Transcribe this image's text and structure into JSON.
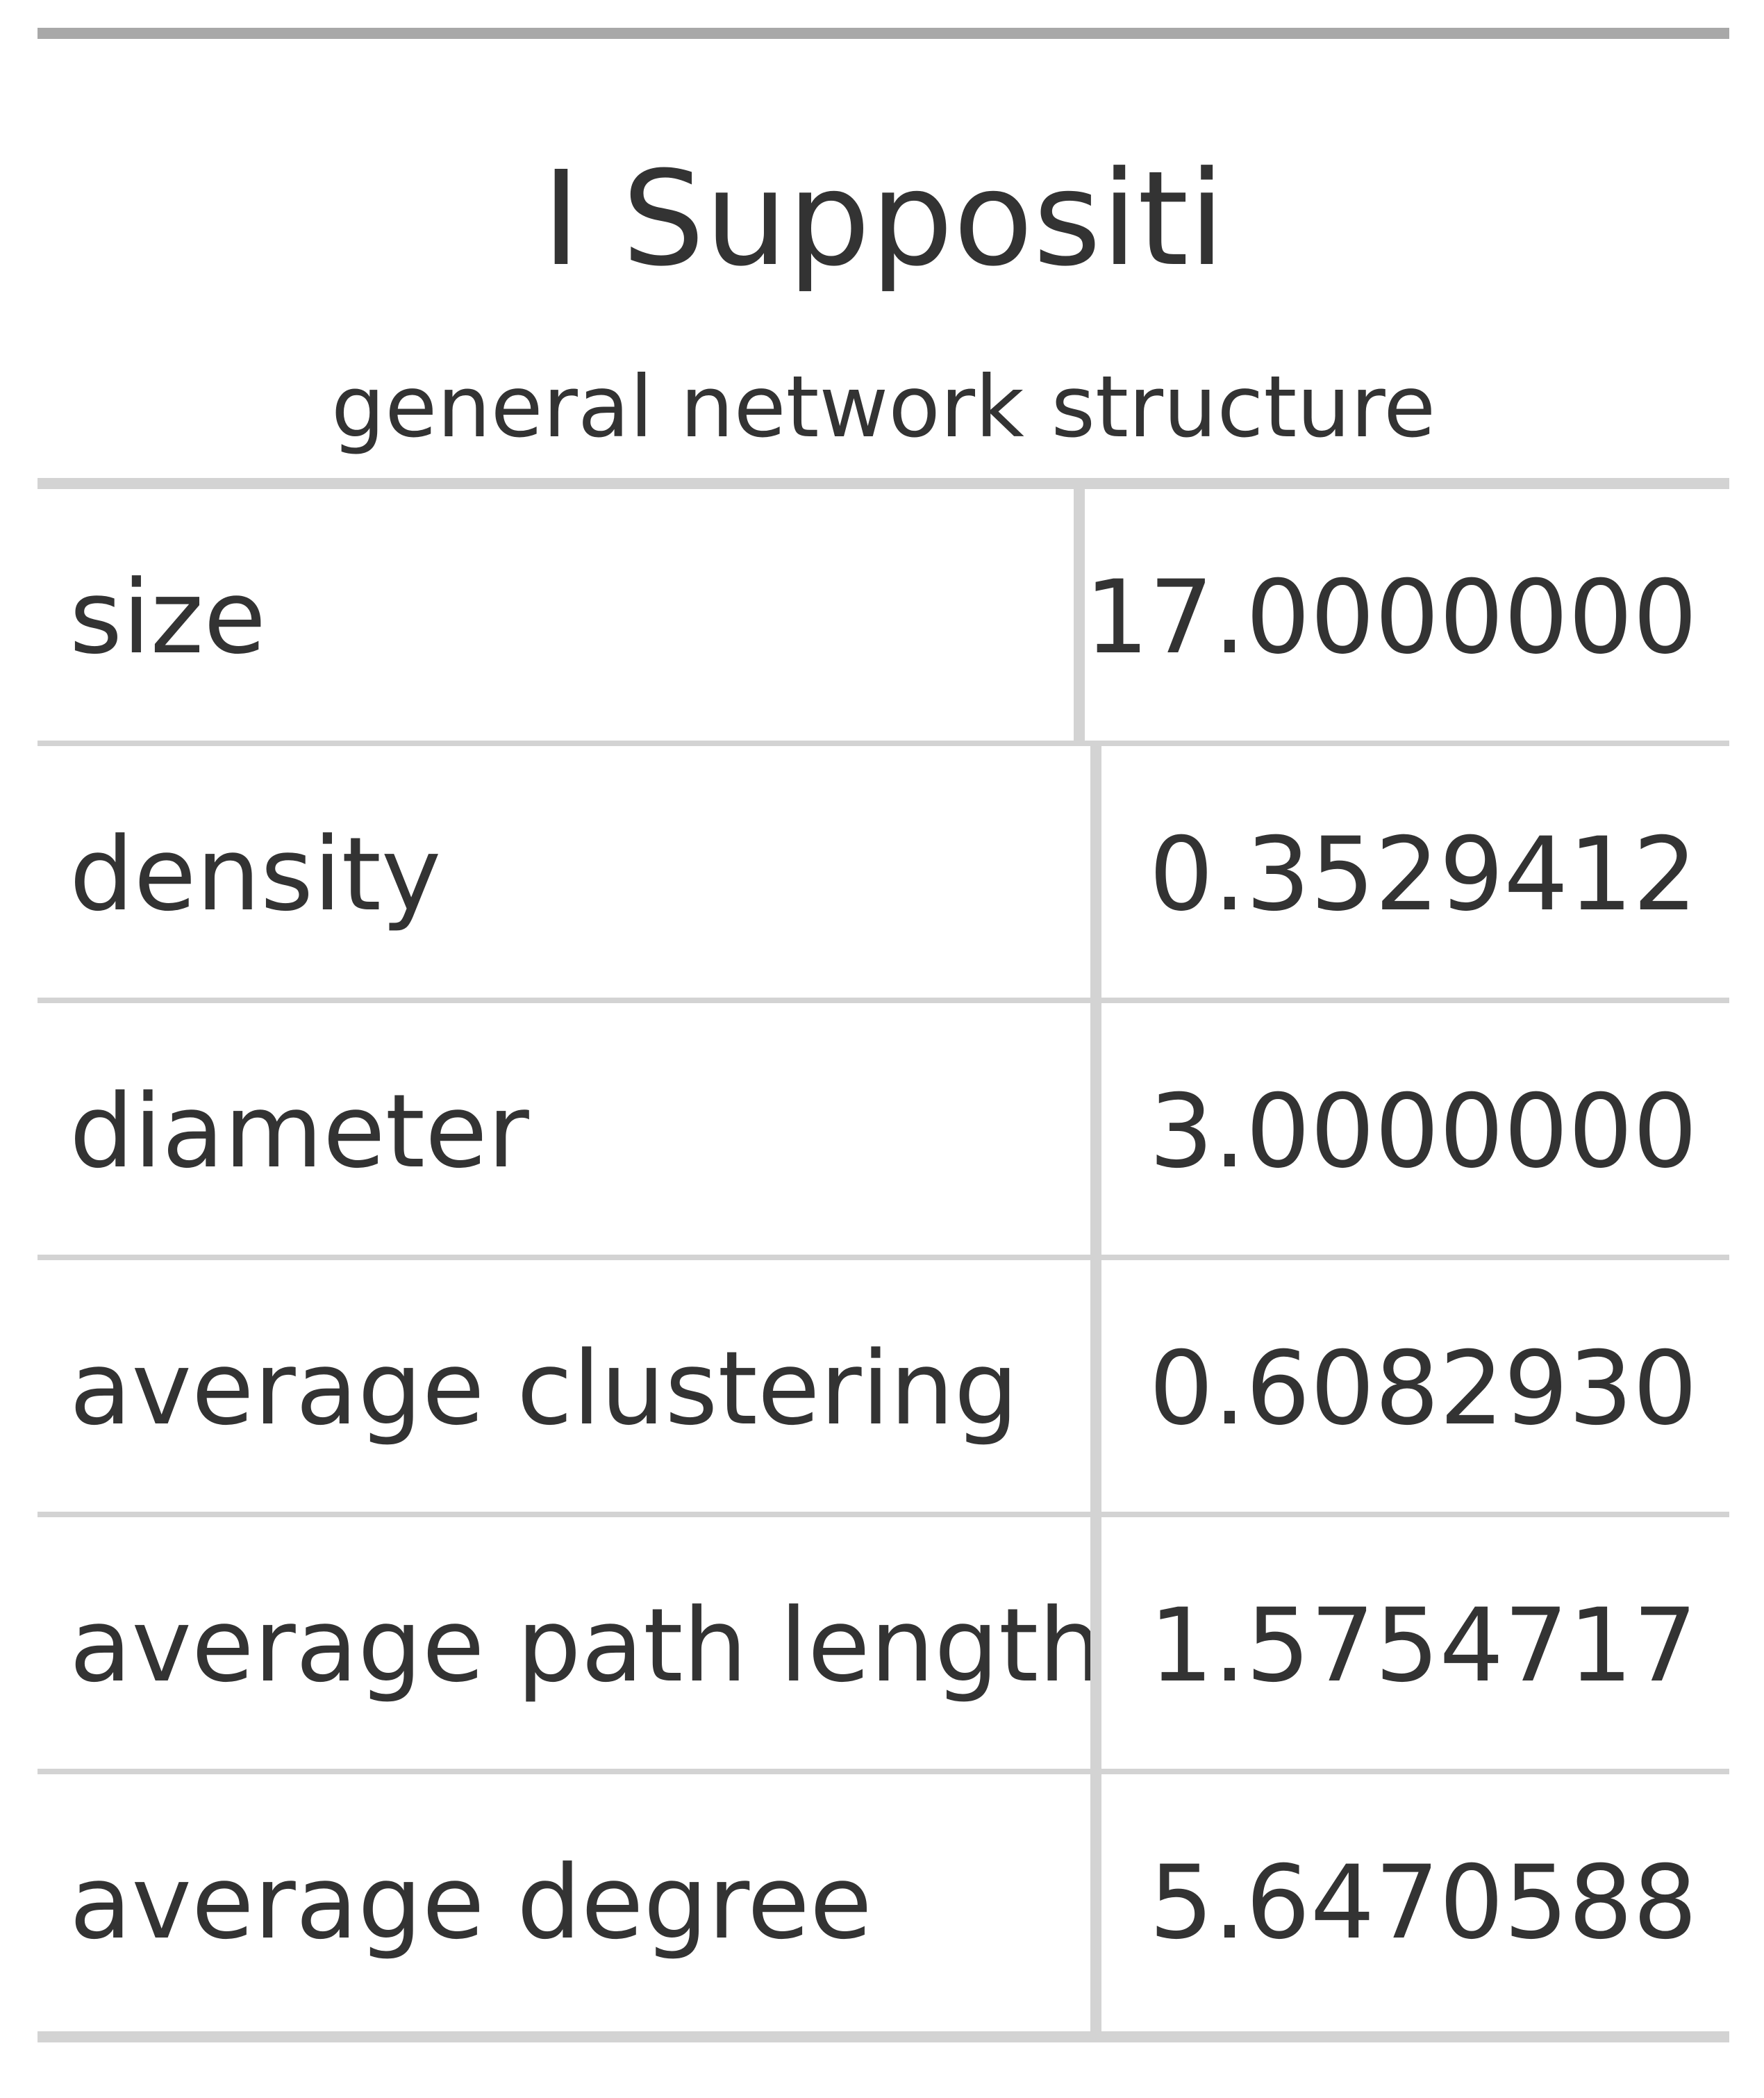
{
  "table": {
    "title": "I Suppositi",
    "subtitle": "general network structure",
    "rows": [
      {
        "label": "size",
        "value": "17.0000000"
      },
      {
        "label": "density",
        "value": "0.3529412"
      },
      {
        "label": "diameter",
        "value": "3.0000000"
      },
      {
        "label": "average clustering",
        "value": "0.6082930"
      },
      {
        "label": "average path length",
        "value": "1.5754717"
      },
      {
        "label": "average degree",
        "value": "5.6470588"
      }
    ]
  },
  "colors": {
    "text": "#333333",
    "top_rule": "#a8a8a8",
    "grid_lines": "#d3d3d3",
    "background": "#ffffff"
  }
}
